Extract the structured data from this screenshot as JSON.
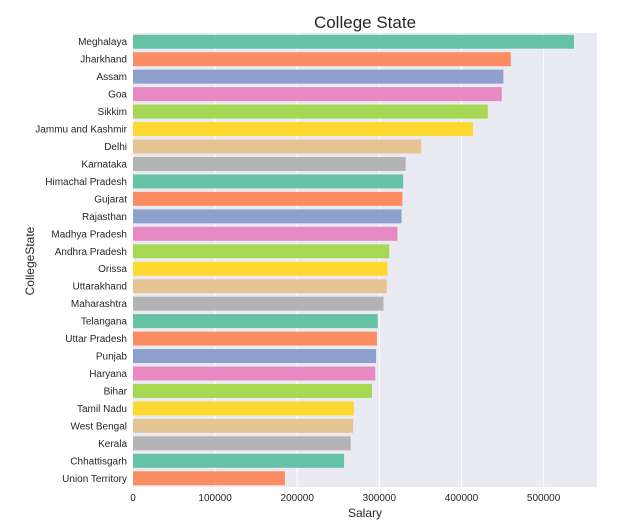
{
  "chart_data": {
    "type": "bar",
    "orientation": "horizontal",
    "title": "College State",
    "xlabel": "Salary",
    "ylabel": "CollegeState",
    "xlim": [
      0,
      565000
    ],
    "xticks": [
      0,
      100000,
      200000,
      300000,
      400000,
      500000
    ],
    "grid": true,
    "legend": "none",
    "background": "#eaeaf2",
    "palette": [
      "#66c2a5",
      "#fc8d62",
      "#8da0cb",
      "#e78ac3",
      "#a6d854",
      "#ffd92f",
      "#e5c494",
      "#b3b3b3"
    ],
    "categories": [
      "Meghalaya",
      "Jharkhand",
      "Assam",
      "Goa",
      "Sikkim",
      "Jammu and Kashmir",
      "Delhi",
      "Karnataka",
      "Himachal Pradesh",
      "Gujarat",
      "Rajasthan",
      "Madhya Pradesh",
      "Andhra Pradesh",
      "Orissa",
      "Uttarakhand",
      "Maharashtra",
      "Telangana",
      "Uttar Pradesh",
      "Punjab",
      "Haryana",
      "Bihar",
      "Tamil Nadu",
      "West Bengal",
      "Kerala",
      "Chhattisgarh",
      "Union Territory"
    ],
    "values": [
      537000,
      460000,
      451000,
      449000,
      432000,
      414000,
      351000,
      332000,
      329000,
      328000,
      327000,
      322000,
      312000,
      310000,
      309000,
      305000,
      298000,
      297000,
      296000,
      295000,
      291000,
      269000,
      268000,
      265000,
      257000,
      185000
    ]
  }
}
